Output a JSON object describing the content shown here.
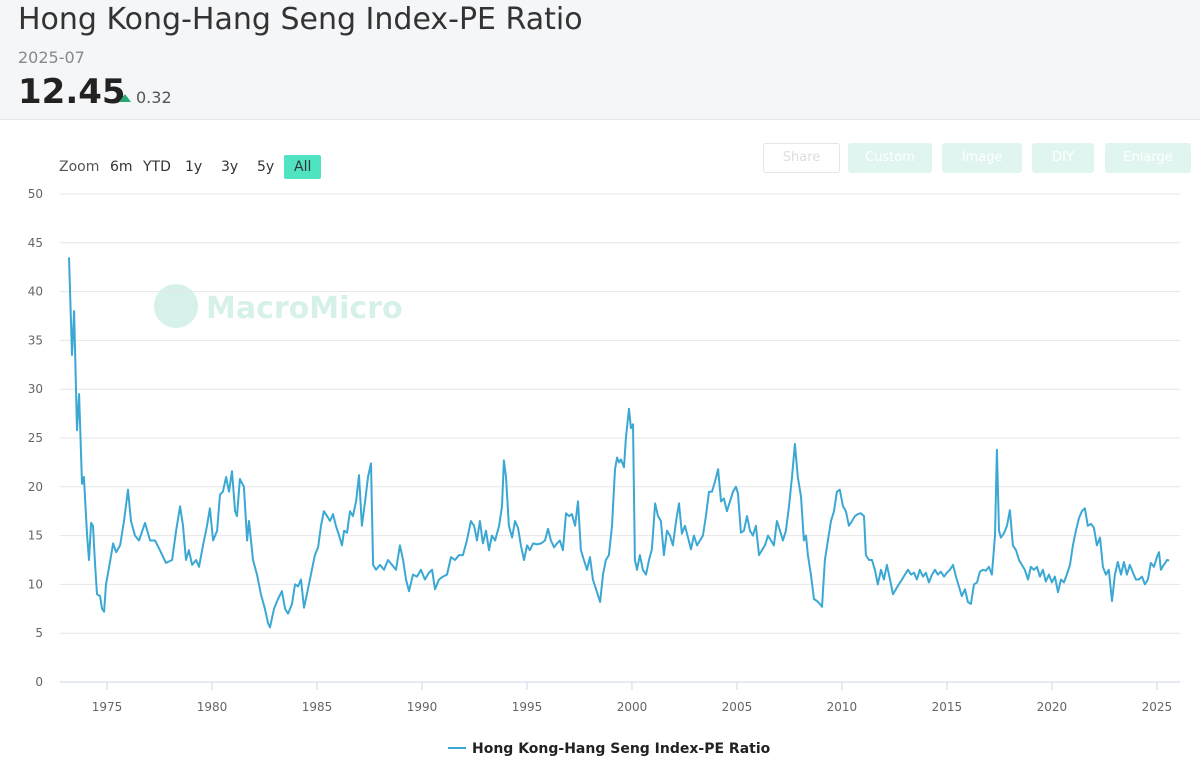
{
  "header": {
    "title": "Hong Kong-Hang Seng Index-PE Ratio",
    "date": "2025-07",
    "value": "12.45",
    "change": "0.32"
  },
  "range_selector": {
    "label": "Zoom",
    "buttons": [
      "6m",
      "YTD",
      "1y",
      "3y",
      "5y",
      "All"
    ],
    "selected": "All"
  },
  "toolbar": [
    "Share",
    "Custom",
    "Image",
    "DIY",
    "Enlarge"
  ],
  "watermark": "MacroMicro",
  "chart_data": {
    "type": "line",
    "x": [
      1973.19,
      1973.33,
      1973.43,
      1973.57,
      1973.67,
      1973.81,
      1973.9,
      1974.05,
      1974.14,
      1974.24,
      1974.33,
      1974.43,
      1974.52,
      1974.67,
      1974.76,
      1974.86,
      1974.95,
      1975.14,
      1975.29,
      1975.43,
      1975.62,
      1975.81,
      1976,
      1976.14,
      1976.33,
      1976.52,
      1976.81,
      1977.05,
      1977.29,
      1977.52,
      1977.81,
      1978.1,
      1978.29,
      1978.48,
      1978.62,
      1978.76,
      1978.9,
      1979.05,
      1979.24,
      1979.38,
      1979.57,
      1979.76,
      1979.9,
      1980.05,
      1980.24,
      1980.38,
      1980.52,
      1980.67,
      1980.81,
      1980.95,
      1981.1,
      1981.19,
      1981.33,
      1981.52,
      1981.67,
      1981.76,
      1981.95,
      1982.14,
      1982.33,
      1982.52,
      1982.67,
      1982.76,
      1982.95,
      1983.14,
      1983.33,
      1983.48,
      1983.62,
      1983.81,
      1983.95,
      1984.1,
      1984.24,
      1984.38,
      1984.52,
      1984.71,
      1984.9,
      1985.05,
      1985.19,
      1985.33,
      1985.48,
      1985.62,
      1985.76,
      1985.9,
      1986.05,
      1986.19,
      1986.29,
      1986.43,
      1986.57,
      1986.71,
      1986.86,
      1987,
      1987.14,
      1987.29,
      1987.43,
      1987.57,
      1987.67,
      1987.81,
      1988,
      1988.19,
      1988.38,
      1988.57,
      1988.76,
      1988.95,
      1989.1,
      1989.24,
      1989.38,
      1989.57,
      1989.76,
      1989.95,
      1990.14,
      1990.33,
      1990.48,
      1990.62,
      1990.81,
      1991,
      1991.19,
      1991.38,
      1991.57,
      1991.76,
      1991.95,
      1992.14,
      1992.33,
      1992.48,
      1992.62,
      1992.76,
      1992.9,
      1993.05,
      1993.19,
      1993.33,
      1993.48,
      1993.67,
      1993.81,
      1993.9,
      1994,
      1994.14,
      1994.29,
      1994.43,
      1994.57,
      1994.71,
      1994.86,
      1995,
      1995.14,
      1995.29,
      1995.48,
      1995.67,
      1995.86,
      1996,
      1996.14,
      1996.29,
      1996.43,
      1996.57,
      1996.71,
      1996.86,
      1997,
      1997.14,
      1997.29,
      1997.43,
      1997.57,
      1997.71,
      1997.86,
      1998,
      1998.14,
      1998.29,
      1998.48,
      1998.62,
      1998.76,
      1998.9,
      1999.05,
      1999.19,
      1999.29,
      1999.38,
      1999.48,
      1999.62,
      1999.71,
      1999.86,
      1999.95,
      2000.05,
      2000.14,
      2000.24,
      2000.38,
      2000.52,
      2000.67,
      2000.81,
      2000.95,
      2001.1,
      2001.24,
      2001.38,
      2001.52,
      2001.67,
      2001.81,
      2001.95,
      2002.1,
      2002.24,
      2002.38,
      2002.52,
      2002.67,
      2002.81,
      2002.95,
      2003.1,
      2003.24,
      2003.38,
      2003.52,
      2003.67,
      2003.81,
      2003.95,
      2004.1,
      2004.24,
      2004.38,
      2004.52,
      2004.67,
      2004.81,
      2004.95,
      2005.05,
      2005.19,
      2005.33,
      2005.48,
      2005.62,
      2005.76,
      2005.9,
      2006.05,
      2006.19,
      2006.33,
      2006.48,
      2006.62,
      2006.76,
      2006.9,
      2007.05,
      2007.19,
      2007.33,
      2007.48,
      2007.62,
      2007.76,
      2007.9,
      2008.05,
      2008.19,
      2008.29,
      2008.38,
      2008.52,
      2008.67,
      2008.81,
      2008.95,
      2009.05,
      2009.19,
      2009.33,
      2009.48,
      2009.62,
      2009.76,
      2009.9,
      2010.05,
      2010.19,
      2010.33,
      2010.48,
      2010.62,
      2010.76,
      2010.9,
      2011.05,
      2011.14,
      2011.29,
      2011.43,
      2011.57,
      2011.71,
      2011.86,
      2012,
      2012.14,
      2012.29,
      2012.43,
      2012.57,
      2012.71,
      2012.86,
      2013,
      2013.14,
      2013.29,
      2013.43,
      2013.57,
      2013.71,
      2013.86,
      2014,
      2014.14,
      2014.29,
      2014.43,
      2014.57,
      2014.71,
      2014.86,
      2015,
      2015.14,
      2015.29,
      2015.43,
      2015.57,
      2015.71,
      2015.86,
      2016,
      2016.14,
      2016.29,
      2016.43,
      2016.57,
      2016.71,
      2016.86,
      2017,
      2017.14,
      2017.29,
      2017.38,
      2017.48,
      2017.57,
      2017.71,
      2017.86,
      2018,
      2018.14,
      2018.29,
      2018.43,
      2018.57,
      2018.71,
      2018.86,
      2019,
      2019.14,
      2019.29,
      2019.43,
      2019.57,
      2019.71,
      2019.86,
      2020,
      2020.14,
      2020.29,
      2020.43,
      2020.57,
      2020.71,
      2020.86,
      2021,
      2021.14,
      2021.29,
      2021.43,
      2021.57,
      2021.71,
      2021.86,
      2022,
      2022.14,
      2022.29,
      2022.43,
      2022.57,
      2022.71,
      2022.86,
      2023,
      2023.14,
      2023.29,
      2023.43,
      2023.57,
      2023.71,
      2023.86,
      2024,
      2024.14,
      2024.29,
      2024.43,
      2024.57,
      2024.71,
      2024.86,
      2025,
      2025.1,
      2025.19,
      2025.33,
      2025.48,
      2025.58
    ],
    "series": [
      {
        "name": "Hong Kong-Hang Seng Index-PE Ratio",
        "color": "#3ba8d4",
        "values": [
          43.5,
          33.5,
          38,
          25.8,
          29.5,
          20.3,
          21,
          15,
          12.5,
          16.3,
          16,
          12,
          9,
          8.8,
          7.5,
          7.2,
          10,
          12.3,
          14.2,
          13.3,
          14,
          16.5,
          19.7,
          16.5,
          15,
          14.5,
          16.3,
          14.5,
          14.5,
          13.5,
          12.2,
          12.5,
          15.5,
          18,
          16,
          12.5,
          13.5,
          12,
          12.5,
          11.8,
          14,
          16,
          17.8,
          14.5,
          15.5,
          19.2,
          19.5,
          21,
          19.5,
          21.6,
          17.5,
          17,
          20.8,
          20,
          14.5,
          16.5,
          12.5,
          11,
          9,
          7.5,
          6,
          5.6,
          7.5,
          8.5,
          9.3,
          7.5,
          7,
          8,
          10,
          9.8,
          10.5,
          7.6,
          9,
          11,
          13,
          13.8,
          16,
          17.5,
          17,
          16.5,
          17.2,
          16,
          15,
          14,
          15.5,
          15.3,
          17.5,
          17,
          18.5,
          21.2,
          16,
          18.5,
          21,
          22.4,
          12,
          11.5,
          12,
          11.5,
          12.5,
          12,
          11.5,
          14,
          12.5,
          10.5,
          9.3,
          11,
          10.8,
          11.5,
          10.5,
          11.2,
          11.5,
          9.5,
          10.5,
          10.8,
          11,
          12.8,
          12.5,
          13,
          13,
          14.5,
          16.5,
          16,
          14.5,
          16.5,
          14.2,
          15.5,
          13.5,
          15,
          14.5,
          16,
          18,
          22.7,
          21,
          16,
          14.8,
          16.5,
          15.8,
          14,
          12.5,
          14,
          13.5,
          14.2,
          14.1,
          14.2,
          14.5,
          15.7,
          14.5,
          13.8,
          14.2,
          14.5,
          13.5,
          17.3,
          17,
          17.2,
          16,
          18.5,
          13.5,
          12.5,
          11.5,
          12.8,
          10.5,
          9.5,
          8.2,
          11,
          12.5,
          13,
          16,
          21.8,
          23,
          22.5,
          22.8,
          22,
          25,
          28,
          26,
          26.4,
          12.5,
          11.5,
          13,
          11.5,
          11,
          12.5,
          13.6,
          18.3,
          17,
          16.5,
          13,
          15.5,
          15,
          14,
          16.5,
          18.3,
          15.2,
          16,
          14.8,
          13.6,
          15,
          14,
          14.5,
          15,
          17,
          19.5,
          19.5,
          20.5,
          21.8,
          18.5,
          18.8,
          17.5,
          18.5,
          19.5,
          20,
          19.3,
          15.3,
          15.5,
          17,
          15.5,
          15,
          16,
          13,
          13.5,
          14,
          15,
          14.5,
          14,
          16.5,
          15.5,
          14.5,
          15.5,
          18,
          21,
          24.4,
          21,
          19,
          14.5,
          15,
          13,
          11,
          8.5,
          8.3,
          8,
          7.7,
          12.5,
          14.5,
          16.5,
          17.5,
          19.5,
          19.7,
          18,
          17.5,
          16,
          16.5,
          17,
          17.2,
          17.3,
          17,
          13,
          12.5,
          12.5,
          11.5,
          10,
          11.5,
          10.5,
          12,
          10.5,
          9,
          9.5,
          10,
          10.5,
          11,
          11.5,
          11,
          11.2,
          10.5,
          11.5,
          10.8,
          11.2,
          10.2,
          11,
          11.5,
          11,
          11.3,
          10.8,
          11.2,
          11.5,
          12,
          10.8,
          9.8,
          8.8,
          9.5,
          8.2,
          8,
          10,
          10.2,
          11.3,
          11.5,
          11.4,
          11.8,
          11,
          15,
          23.8,
          15.5,
          14.8,
          15.2,
          16,
          17.6,
          14,
          13.5,
          12.5,
          12,
          11.5,
          10.5,
          11.8,
          11.5,
          11.8,
          10.8,
          11.5,
          10.3,
          11,
          10.2,
          10.8,
          9.2,
          10.5,
          10.2,
          11,
          12,
          14,
          15.5,
          16.8,
          17.5,
          17.8,
          16,
          16.2,
          15.8,
          14,
          14.8,
          11.8,
          11,
          11.5,
          8.3,
          11,
          12.3,
          11,
          12.3,
          11,
          12,
          11.2,
          10.5,
          10.5,
          10.8,
          10,
          10.5,
          12.2,
          11.8,
          12.8,
          13.3,
          11.5,
          12,
          12.5,
          12.45
        ]
      }
    ],
    "xlim": [
      1972.76,
      2026.1
    ],
    "xticks": [
      1975,
      1980,
      1985,
      1990,
      1995,
      2000,
      2005,
      2010,
      2015,
      2020,
      2025
    ],
    "ylim": [
      0,
      50
    ],
    "yticks": [
      0,
      5,
      10,
      15,
      20,
      25,
      30,
      35,
      40,
      45,
      50
    ],
    "grid": true
  }
}
